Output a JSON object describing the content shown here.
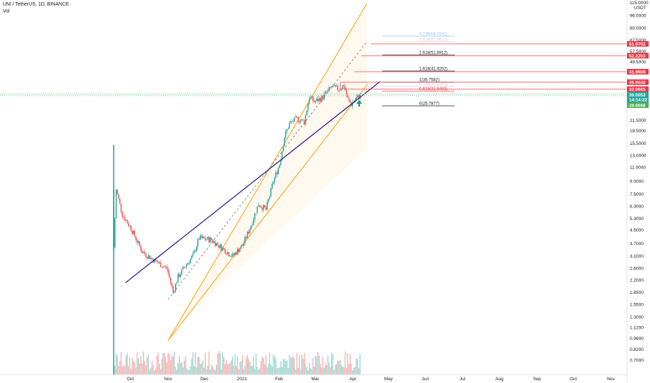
{
  "header": {
    "symbol": "UNI / TetherUS, 1D, BINANCE",
    "volume_label": "Vol"
  },
  "price_axis": {
    "currency": "USDT",
    "top_label": "115.0000",
    "labels": [
      "96.0000",
      "80.0000",
      "67.5000",
      "57.5000",
      "49.5000",
      "21.5000",
      "18.5000",
      "15.5000",
      "13.0000",
      "11.0000",
      "9.0000",
      "7.5000",
      "6.3000",
      "5.3000",
      "4.5000",
      "3.7000",
      "3.1000",
      "2.6000",
      "2.2000",
      "1.8500",
      "1.5500",
      "1.3000",
      "1.1200",
      "0.9600",
      "0.8200",
      "0.7000"
    ]
  },
  "price_tags": [
    {
      "label": "61.9792",
      "color": "#f23645"
    },
    {
      "label": "52.2253",
      "color": "#f23645"
    },
    {
      "label": "41.9989",
      "color": "#f23645"
    },
    {
      "label": "35.9442",
      "color": "#f23645"
    },
    {
      "label": "32.0665",
      "color": "#f23645"
    },
    {
      "label": "30.5053",
      "color": "#26a69a"
    },
    {
      "label": "14:14:22",
      "color": "#26a69a"
    },
    {
      "label": "28.6688",
      "color": "#4caf50"
    }
  ],
  "fib_levels": [
    {
      "label": "4.236(68.0241)",
      "color": "#9ec2ee"
    },
    {
      "label": "3.618(61.9621)",
      "color": "#d0d0d0"
    },
    {
      "label": "2.618(51.8912)",
      "color": "#131722"
    },
    {
      "label": "1.618(41.9202)",
      "color": "#131722"
    },
    {
      "label": "1(35.7582)",
      "color": "#131722"
    },
    {
      "label": "0.786(33.6283)",
      "color": "#d0d0d0"
    },
    {
      "label": "0.618(31.9493)",
      "color": "#f23645"
    },
    {
      "label": "0(25.7877)",
      "color": "#131722"
    }
  ],
  "time_axis": {
    "labels": [
      "Oct",
      "Nov",
      "Dec",
      "2021",
      "Feb",
      "Mar",
      "Apr",
      "May",
      "Jun",
      "Jul",
      "Aug",
      "Sep",
      "Oct",
      "Nov"
    ]
  },
  "chart_data": {
    "type": "candlestick",
    "title": "UNI / TetherUS, 1D, BINANCE",
    "xlabel": "",
    "ylabel": "USDT",
    "scale": "log",
    "ylim": [
      0.63,
      116
    ],
    "x_axis": [
      "Oct",
      "Nov",
      "Dec",
      "2021",
      "Feb",
      "Mar",
      "Apr",
      "May",
      "Jun",
      "Jul",
      "Aug",
      "Sep",
      "Oct",
      "Nov"
    ],
    "y_ticks": [
      96,
      80,
      67.5,
      57.5,
      49.5,
      21.5,
      18.5,
      15.5,
      13,
      11,
      9,
      7.5,
      6.3,
      5.3,
      4.5,
      3.7,
      3.1,
      2.6,
      2.2,
      1.85,
      1.55,
      1.3,
      1.12,
      0.96,
      0.82,
      0.7
    ],
    "price_path": [
      {
        "date": "2020-09-17",
        "price": 3.5
      },
      {
        "date": "2020-09-19",
        "price": 8.0
      },
      {
        "date": "2020-09-24",
        "price": 5.6
      },
      {
        "date": "2020-10-01",
        "price": 4.6
      },
      {
        "date": "2020-10-10",
        "price": 3.3
      },
      {
        "date": "2020-10-20",
        "price": 2.9
      },
      {
        "date": "2020-10-30",
        "price": 2.6
      },
      {
        "date": "2020-11-04",
        "price": 1.85
      },
      {
        "date": "2020-11-08",
        "price": 2.3
      },
      {
        "date": "2020-11-14",
        "price": 2.7
      },
      {
        "date": "2020-11-20",
        "price": 3.1
      },
      {
        "date": "2020-11-25",
        "price": 4.0
      },
      {
        "date": "2020-12-05",
        "price": 3.9
      },
      {
        "date": "2020-12-15",
        "price": 3.4
      },
      {
        "date": "2020-12-22",
        "price": 3.1
      },
      {
        "date": "2020-12-30",
        "price": 3.6
      },
      {
        "date": "2021-01-05",
        "price": 4.6
      },
      {
        "date": "2021-01-12",
        "price": 6.5
      },
      {
        "date": "2021-01-18",
        "price": 6.0
      },
      {
        "date": "2021-01-24",
        "price": 9.0
      },
      {
        "date": "2021-01-29",
        "price": 11.5
      },
      {
        "date": "2021-02-02",
        "price": 17.0
      },
      {
        "date": "2021-02-06",
        "price": 20.5
      },
      {
        "date": "2021-02-12",
        "price": 22.0
      },
      {
        "date": "2021-02-18",
        "price": 21.0
      },
      {
        "date": "2021-02-22",
        "price": 30.0
      },
      {
        "date": "2021-02-26",
        "price": 28.0
      },
      {
        "date": "2021-03-04",
        "price": 29.5
      },
      {
        "date": "2021-03-08",
        "price": 32.0
      },
      {
        "date": "2021-03-12",
        "price": 34.5
      },
      {
        "date": "2021-03-18",
        "price": 33.5
      },
      {
        "date": "2021-03-22",
        "price": 35.5
      },
      {
        "date": "2021-03-25",
        "price": 29.0
      },
      {
        "date": "2021-03-28",
        "price": 27.0
      },
      {
        "date": "2021-04-01",
        "price": 29.5
      },
      {
        "date": "2021-04-04",
        "price": 30.5
      }
    ],
    "volume_spike": {
      "date": "2020-09-17",
      "relative": 1.0
    },
    "volume_typical_relative": 0.06,
    "last_price": 30.5053,
    "annotations": [
      "ascending channel",
      "trend line",
      "fib extension levels",
      "up arrow"
    ]
  }
}
